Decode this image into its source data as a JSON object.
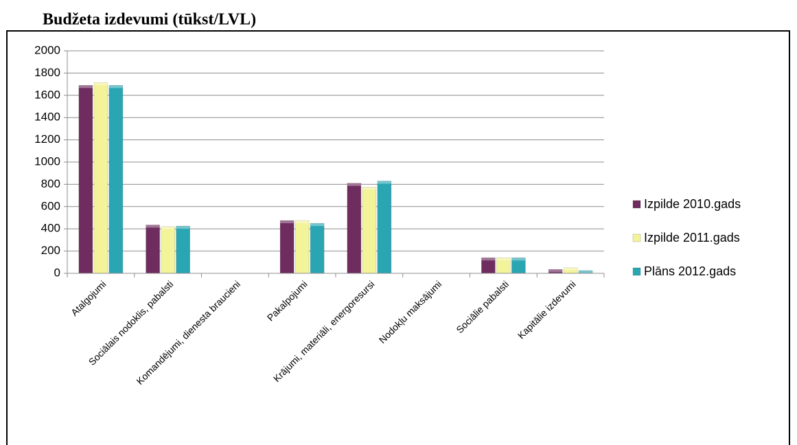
{
  "chart_data": {
    "type": "bar",
    "title": "Budžeta izdevumi (tūkst/LVL)",
    "categories": [
      "Atalgojumi",
      "Sociālais nodoklis, pabalsti",
      "Komandējumi, dienesta braucieni",
      "Pakalpojumi",
      "Krājumi, materiāli, energoresursi",
      "Nodokļu maksājumi",
      "Sociālie pabalsti",
      "Kapitālie izdevumi"
    ],
    "series": [
      {
        "name": "Izpilde 2010.gads",
        "color": "#6e2c5f",
        "values": [
          1690,
          435,
          0,
          475,
          810,
          0,
          140,
          35
        ]
      },
      {
        "name": "Izpilde 2011.gads",
        "color": "#f3f39a",
        "values": [
          1715,
          420,
          0,
          475,
          775,
          0,
          140,
          50
        ]
      },
      {
        "name": "Plāns 2012.gads",
        "color": "#2aa6b3",
        "values": [
          1690,
          425,
          0,
          450,
          830,
          0,
          140,
          25
        ]
      }
    ],
    "ylim": [
      0,
      2000
    ],
    "yticks": [
      0,
      200,
      400,
      600,
      800,
      1000,
      1200,
      1400,
      1600,
      1800,
      2000
    ],
    "grid": true,
    "legend": "right"
  }
}
